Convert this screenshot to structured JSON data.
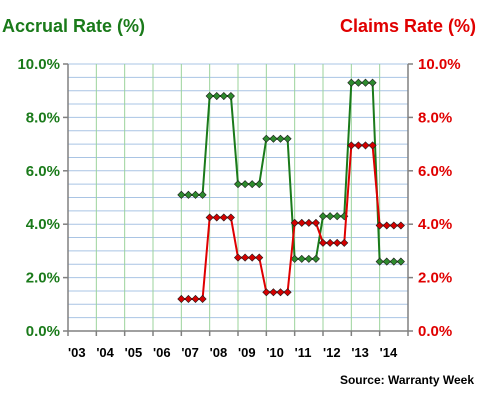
{
  "chart_data": {
    "type": "line",
    "title_left": "Accrual Rate (%)",
    "title_right": "Claims Rate (%)",
    "source": "Source: Warranty Week",
    "categories": [
      "'03",
      "'04",
      "'05",
      "'06",
      "'07",
      "'08",
      "'09",
      "'10",
      "'11",
      "'12",
      "'13",
      "'14"
    ],
    "y_left": {
      "min": 0,
      "max": 10,
      "ticks": [
        "0.0%",
        "2.0%",
        "4.0%",
        "6.0%",
        "8.0%",
        "10.0%"
      ]
    },
    "y_right": {
      "min": 0,
      "max": 10,
      "ticks": [
        "0.0%",
        "2.0%",
        "4.0%",
        "6.0%",
        "8.0%",
        "10.0%"
      ]
    },
    "grid": true,
    "series": [
      {
        "name": "Accrual Rate (%)",
        "axis": "left",
        "color": "#1a7a1a",
        "marker": "#2e8b2e",
        "points": [
          [
            2007.0,
            5.1
          ],
          [
            2007.25,
            5.1
          ],
          [
            2007.5,
            5.1
          ],
          [
            2007.75,
            5.1
          ],
          [
            2008.0,
            8.8
          ],
          [
            2008.25,
            8.8
          ],
          [
            2008.5,
            8.8
          ],
          [
            2008.75,
            8.8
          ],
          [
            2009.0,
            5.5
          ],
          [
            2009.25,
            5.5
          ],
          [
            2009.5,
            5.5
          ],
          [
            2009.75,
            5.5
          ],
          [
            2010.0,
            7.2
          ],
          [
            2010.25,
            7.2
          ],
          [
            2010.5,
            7.2
          ],
          [
            2010.75,
            7.2
          ],
          [
            2011.0,
            2.7
          ],
          [
            2011.25,
            2.7
          ],
          [
            2011.5,
            2.7
          ],
          [
            2011.75,
            2.7
          ],
          [
            2012.0,
            4.3
          ],
          [
            2012.25,
            4.3
          ],
          [
            2012.5,
            4.3
          ],
          [
            2012.75,
            4.3
          ],
          [
            2013.0,
            9.3
          ],
          [
            2013.25,
            9.3
          ],
          [
            2013.5,
            9.3
          ],
          [
            2013.75,
            9.3
          ],
          [
            2014.0,
            2.6
          ],
          [
            2014.25,
            2.6
          ],
          [
            2014.5,
            2.6
          ],
          [
            2014.75,
            2.6
          ]
        ]
      },
      {
        "name": "Claims Rate (%)",
        "axis": "right",
        "color": "#e00000",
        "marker": "#d40000",
        "points": [
          [
            2007.0,
            1.2
          ],
          [
            2007.25,
            1.2
          ],
          [
            2007.5,
            1.2
          ],
          [
            2007.75,
            1.2
          ],
          [
            2008.0,
            4.25
          ],
          [
            2008.25,
            4.25
          ],
          [
            2008.5,
            4.25
          ],
          [
            2008.75,
            4.25
          ],
          [
            2009.0,
            2.75
          ],
          [
            2009.25,
            2.75
          ],
          [
            2009.5,
            2.75
          ],
          [
            2009.75,
            2.75
          ],
          [
            2010.0,
            1.45
          ],
          [
            2010.25,
            1.45
          ],
          [
            2010.5,
            1.45
          ],
          [
            2010.75,
            1.45
          ],
          [
            2011.0,
            4.05
          ],
          [
            2011.25,
            4.05
          ],
          [
            2011.5,
            4.05
          ],
          [
            2011.75,
            4.05
          ],
          [
            2012.0,
            3.3
          ],
          [
            2012.25,
            3.3
          ],
          [
            2012.5,
            3.3
          ],
          [
            2012.75,
            3.3
          ],
          [
            2013.0,
            6.95
          ],
          [
            2013.25,
            6.95
          ],
          [
            2013.5,
            6.95
          ],
          [
            2013.75,
            6.95
          ],
          [
            2014.0,
            3.95
          ],
          [
            2014.25,
            3.95
          ],
          [
            2014.5,
            3.95
          ],
          [
            2014.75,
            3.95
          ]
        ]
      }
    ]
  },
  "colors": {
    "accrual": "#1a7a1a",
    "claims": "#e00000",
    "grid_h": "#a9c4e4",
    "grid_v": "#9bd39b",
    "axis": "#808080"
  }
}
